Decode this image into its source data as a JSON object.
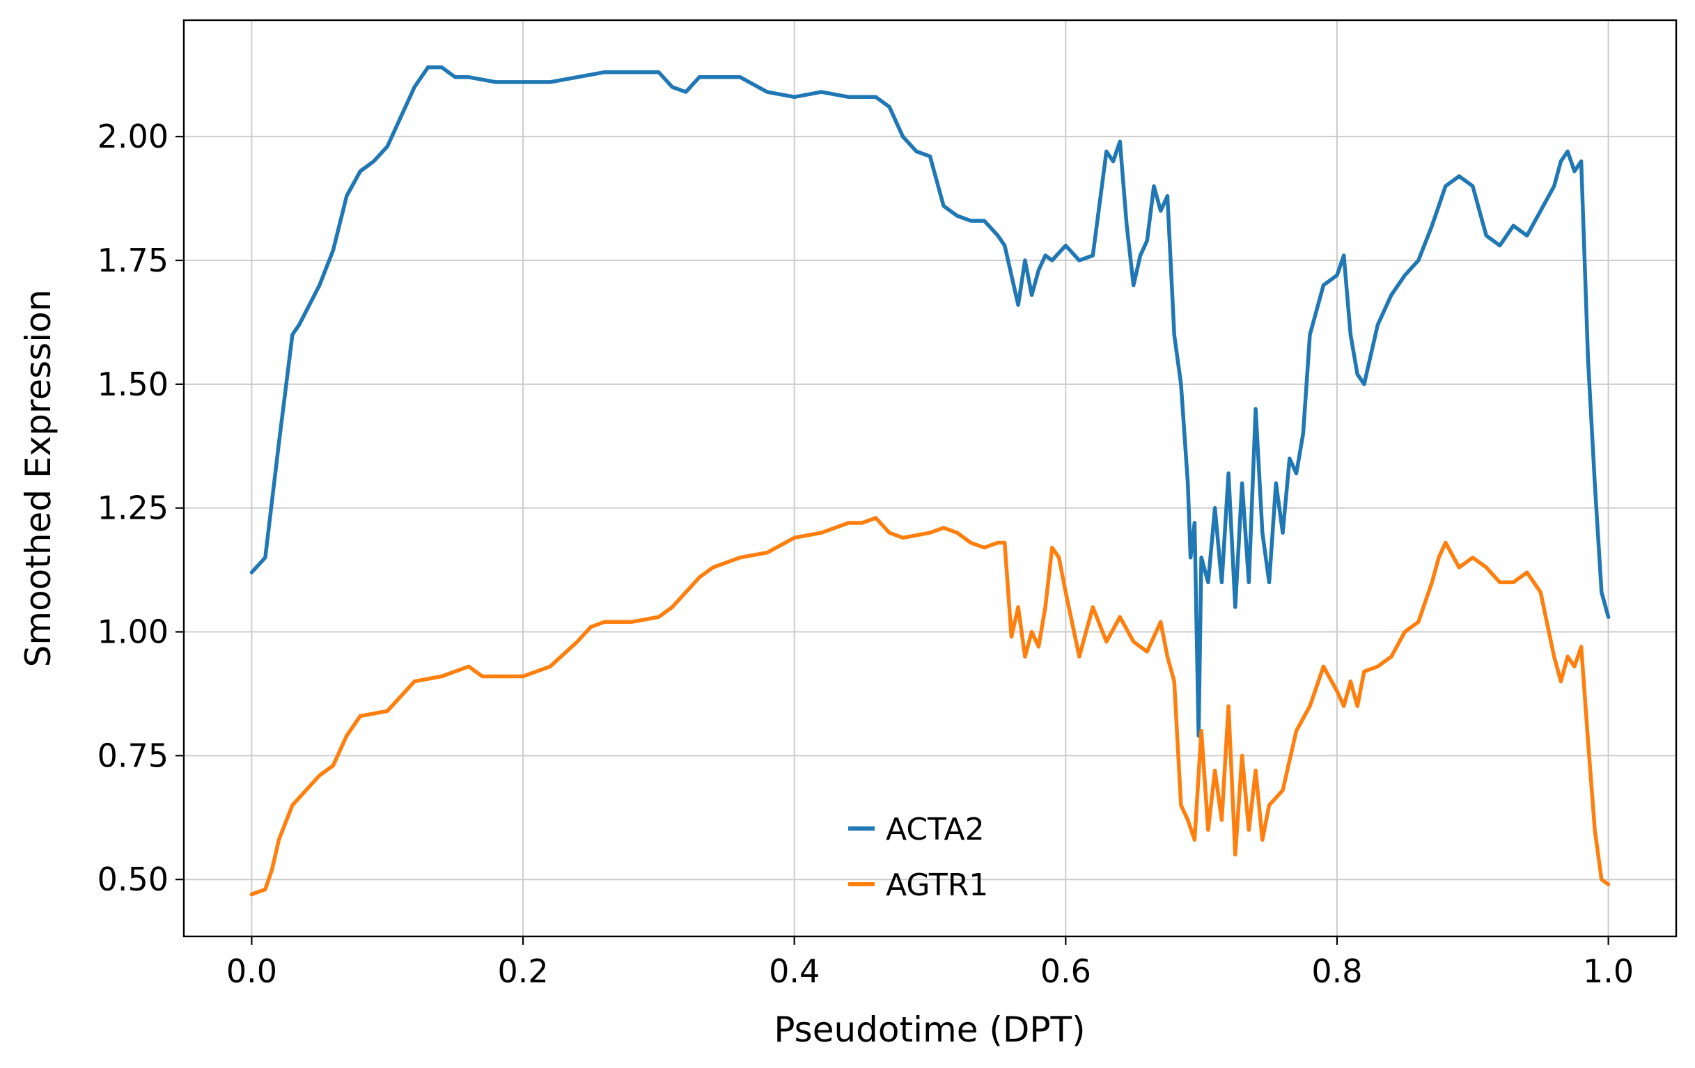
{
  "chart_data": {
    "type": "line",
    "title": "",
    "xlabel": "Pseudotime (DPT)",
    "ylabel": "Smoothed Expression",
    "xlim": [
      -0.05,
      1.05
    ],
    "ylim": [
      0.385,
      2.235
    ],
    "xticks": [
      0.0,
      0.2,
      0.4,
      0.6,
      0.8,
      1.0
    ],
    "xtick_labels": [
      "0.0",
      "0.2",
      "0.4",
      "0.6",
      "0.8",
      "1.0"
    ],
    "yticks": [
      0.5,
      0.75,
      1.0,
      1.25,
      1.5,
      1.75,
      2.0
    ],
    "ytick_labels": [
      "0.50",
      "0.75",
      "1.00",
      "1.25",
      "1.50",
      "1.75",
      "2.00"
    ],
    "grid": true,
    "legend_position": "lower-center",
    "series": [
      {
        "name": "ACTA2",
        "color": "#1f77b4",
        "x": [
          0.0,
          0.01,
          0.02,
          0.03,
          0.035,
          0.05,
          0.06,
          0.07,
          0.08,
          0.09,
          0.1,
          0.11,
          0.12,
          0.13,
          0.14,
          0.15,
          0.16,
          0.18,
          0.2,
          0.22,
          0.24,
          0.26,
          0.28,
          0.3,
          0.31,
          0.32,
          0.33,
          0.34,
          0.36,
          0.38,
          0.4,
          0.42,
          0.44,
          0.46,
          0.47,
          0.48,
          0.49,
          0.5,
          0.51,
          0.52,
          0.53,
          0.54,
          0.55,
          0.555,
          0.56,
          0.565,
          0.57,
          0.575,
          0.58,
          0.585,
          0.59,
          0.6,
          0.61,
          0.62,
          0.63,
          0.635,
          0.64,
          0.645,
          0.65,
          0.655,
          0.66,
          0.665,
          0.67,
          0.675,
          0.68,
          0.685,
          0.69,
          0.692,
          0.695,
          0.698,
          0.7,
          0.705,
          0.71,
          0.715,
          0.72,
          0.725,
          0.73,
          0.735,
          0.74,
          0.745,
          0.75,
          0.755,
          0.76,
          0.765,
          0.77,
          0.775,
          0.78,
          0.79,
          0.8,
          0.805,
          0.81,
          0.815,
          0.82,
          0.83,
          0.84,
          0.85,
          0.86,
          0.87,
          0.88,
          0.89,
          0.9,
          0.905,
          0.91,
          0.92,
          0.93,
          0.94,
          0.95,
          0.96,
          0.965,
          0.97,
          0.975,
          0.98,
          0.985,
          0.99,
          0.995,
          1.0
        ],
        "y": [
          1.12,
          1.15,
          1.38,
          1.6,
          1.62,
          1.7,
          1.77,
          1.88,
          1.93,
          1.95,
          1.98,
          2.04,
          2.1,
          2.14,
          2.14,
          2.12,
          2.12,
          2.11,
          2.11,
          2.11,
          2.12,
          2.13,
          2.13,
          2.13,
          2.1,
          2.09,
          2.12,
          2.12,
          2.12,
          2.09,
          2.08,
          2.09,
          2.08,
          2.08,
          2.06,
          2.0,
          1.97,
          1.96,
          1.86,
          1.84,
          1.83,
          1.83,
          1.8,
          1.78,
          1.72,
          1.66,
          1.75,
          1.68,
          1.73,
          1.76,
          1.75,
          1.78,
          1.75,
          1.76,
          1.97,
          1.95,
          1.99,
          1.82,
          1.7,
          1.76,
          1.79,
          1.9,
          1.85,
          1.88,
          1.6,
          1.5,
          1.3,
          1.15,
          1.22,
          0.79,
          1.15,
          1.1,
          1.25,
          1.1,
          1.32,
          1.05,
          1.3,
          1.1,
          1.45,
          1.2,
          1.1,
          1.3,
          1.2,
          1.35,
          1.32,
          1.4,
          1.6,
          1.7,
          1.72,
          1.76,
          1.6,
          1.52,
          1.5,
          1.62,
          1.68,
          1.72,
          1.75,
          1.82,
          1.9,
          1.92,
          1.9,
          1.85,
          1.8,
          1.78,
          1.82,
          1.8,
          1.85,
          1.9,
          1.95,
          1.97,
          1.93,
          1.95,
          1.55,
          1.3,
          1.08,
          1.03
        ]
      },
      {
        "name": "AGTR1",
        "color": "#ff7f0e",
        "x": [
          0.0,
          0.01,
          0.015,
          0.02,
          0.03,
          0.04,
          0.05,
          0.06,
          0.07,
          0.08,
          0.1,
          0.11,
          0.12,
          0.14,
          0.16,
          0.17,
          0.2,
          0.22,
          0.24,
          0.25,
          0.26,
          0.28,
          0.3,
          0.31,
          0.32,
          0.33,
          0.34,
          0.36,
          0.38,
          0.4,
          0.42,
          0.44,
          0.45,
          0.46,
          0.47,
          0.48,
          0.5,
          0.51,
          0.52,
          0.53,
          0.54,
          0.55,
          0.555,
          0.56,
          0.565,
          0.57,
          0.575,
          0.58,
          0.585,
          0.59,
          0.595,
          0.6,
          0.61,
          0.62,
          0.63,
          0.64,
          0.65,
          0.66,
          0.67,
          0.675,
          0.68,
          0.685,
          0.69,
          0.695,
          0.7,
          0.705,
          0.71,
          0.715,
          0.72,
          0.725,
          0.73,
          0.735,
          0.74,
          0.745,
          0.75,
          0.76,
          0.77,
          0.78,
          0.79,
          0.8,
          0.805,
          0.81,
          0.815,
          0.82,
          0.83,
          0.84,
          0.85,
          0.86,
          0.87,
          0.875,
          0.88,
          0.89,
          0.9,
          0.91,
          0.92,
          0.93,
          0.94,
          0.95,
          0.96,
          0.965,
          0.97,
          0.975,
          0.98,
          0.985,
          0.99,
          0.995,
          1.0
        ],
        "y": [
          0.47,
          0.48,
          0.52,
          0.58,
          0.65,
          0.68,
          0.71,
          0.73,
          0.79,
          0.83,
          0.84,
          0.87,
          0.9,
          0.91,
          0.93,
          0.91,
          0.91,
          0.93,
          0.98,
          1.01,
          1.02,
          1.02,
          1.03,
          1.05,
          1.08,
          1.11,
          1.13,
          1.15,
          1.16,
          1.19,
          1.2,
          1.22,
          1.22,
          1.23,
          1.2,
          1.19,
          1.2,
          1.21,
          1.2,
          1.18,
          1.17,
          1.18,
          1.18,
          0.99,
          1.05,
          0.95,
          1.0,
          0.97,
          1.05,
          1.17,
          1.15,
          1.08,
          0.95,
          1.05,
          0.98,
          1.03,
          0.98,
          0.96,
          1.02,
          0.95,
          0.9,
          0.65,
          0.62,
          0.58,
          0.8,
          0.6,
          0.72,
          0.62,
          0.85,
          0.55,
          0.75,
          0.6,
          0.72,
          0.58,
          0.65,
          0.68,
          0.8,
          0.85,
          0.93,
          0.88,
          0.85,
          0.9,
          0.85,
          0.92,
          0.93,
          0.95,
          1.0,
          1.02,
          1.1,
          1.15,
          1.18,
          1.13,
          1.15,
          1.13,
          1.1,
          1.1,
          1.12,
          1.08,
          0.95,
          0.9,
          0.95,
          0.93,
          0.97,
          0.78,
          0.6,
          0.5,
          0.49
        ]
      }
    ]
  }
}
